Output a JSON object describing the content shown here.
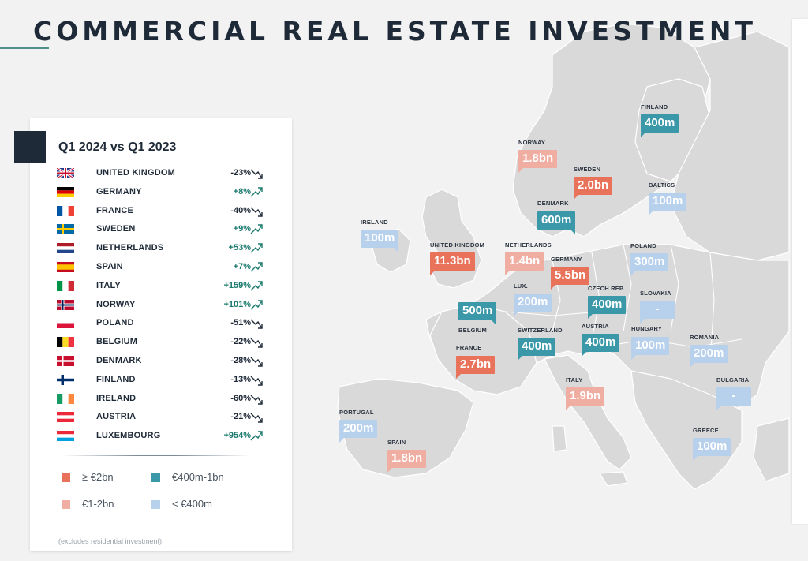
{
  "title": "COMMERCIAL REAL ESTATE INVESTMENT",
  "panel": {
    "heading": "Q1 2024 vs Q1 2023",
    "rows": [
      {
        "flag": "uk-flag-icon",
        "name": "UNITED KINGDOM",
        "change": "-23%",
        "trend": "down"
      },
      {
        "flag": "germany-flag-icon",
        "name": "GERMANY",
        "change": "+8%",
        "trend": "up"
      },
      {
        "flag": "france-flag-icon",
        "name": "FRANCE",
        "change": "-40%",
        "trend": "down"
      },
      {
        "flag": "sweden-flag-icon",
        "name": "SWEDEN",
        "change": "+9%",
        "trend": "up"
      },
      {
        "flag": "netherlands-flag-icon",
        "name": "NETHERLANDS",
        "change": "+53%",
        "trend": "up"
      },
      {
        "flag": "spain-flag-icon",
        "name": "SPAIN",
        "change": "+7%",
        "trend": "up"
      },
      {
        "flag": "italy-flag-icon",
        "name": "ITALY",
        "change": "+159%",
        "trend": "up"
      },
      {
        "flag": "norway-flag-icon",
        "name": "NORWAY",
        "change": "+101%",
        "trend": "up"
      },
      {
        "flag": "poland-flag-icon",
        "name": "POLAND",
        "change": "-51%",
        "trend": "down"
      },
      {
        "flag": "belgium-flag-icon",
        "name": "BELGIUM",
        "change": "-22%",
        "trend": "down"
      },
      {
        "flag": "denmark-flag-icon",
        "name": "DENMARK",
        "change": "-28%",
        "trend": "down"
      },
      {
        "flag": "finland-flag-icon",
        "name": "FINLAND",
        "change": "-13%",
        "trend": "down"
      },
      {
        "flag": "ireland-flag-icon",
        "name": "IRELAND",
        "change": "-60%",
        "trend": "down"
      },
      {
        "flag": "austria-flag-icon",
        "name": "AUSTRIA",
        "change": "-21%",
        "trend": "down"
      },
      {
        "flag": "luxembourg-flag-icon",
        "name": "LUXEMBOURG",
        "change": "+954%",
        "trend": "up"
      }
    ],
    "legend": [
      {
        "label": "≥ €2bn",
        "color": "#e8735a"
      },
      {
        "label": "€400m-1bn",
        "color": "#3a98a8"
      },
      {
        "label": "€1-2bn",
        "color": "#f0ada2"
      },
      {
        "label": "< €400m",
        "color": "#b7d0ec"
      }
    ],
    "note": "(excludes residential investment)"
  },
  "colors": {
    "dark_salmon": "#e8735a",
    "light_salmon": "#f0ada2",
    "teal": "#3a98a8",
    "pale_blue": "#b7d0ec",
    "navy": "#1f2a38",
    "positive_green": "#1b7a6e"
  },
  "map": {
    "countries": [
      {
        "name": "FINLAND",
        "value": "400m",
        "band": "teal"
      },
      {
        "name": "NORWAY",
        "value": "1.8bn",
        "band": "light"
      },
      {
        "name": "SWEDEN",
        "value": "2.0bn",
        "band": "dark"
      },
      {
        "name": "BALTICS",
        "value": "100m",
        "band": "pale"
      },
      {
        "name": "DENMARK",
        "value": "600m",
        "band": "teal"
      },
      {
        "name": "IRELAND",
        "value": "100m",
        "band": "pale"
      },
      {
        "name": "UNITED KINGDOM",
        "value": "11.3bn",
        "band": "dark"
      },
      {
        "name": "NETHERLANDS",
        "value": "1.4bn",
        "band": "light"
      },
      {
        "name": "POLAND",
        "value": "300m",
        "band": "pale"
      },
      {
        "name": "GERMANY",
        "value": "5.5bn",
        "band": "dark"
      },
      {
        "name": "LUX.",
        "value": "200m",
        "band": "pale"
      },
      {
        "name": "CZECH REP.",
        "value": "400m",
        "band": "teal"
      },
      {
        "name": "SLOVAKIA",
        "value": "-",
        "band": "pale"
      },
      {
        "name": "BELGIUM",
        "value": "500m",
        "band": "teal"
      },
      {
        "name": "SWITZERLAND",
        "value": "400m",
        "band": "teal"
      },
      {
        "name": "AUSTRIA",
        "value": "400m",
        "band": "teal"
      },
      {
        "name": "HUNGARY",
        "value": "100m",
        "band": "pale"
      },
      {
        "name": "ROMANIA",
        "value": "200m",
        "band": "pale"
      },
      {
        "name": "FRANCE",
        "value": "2.7bn",
        "band": "dark"
      },
      {
        "name": "ITALY",
        "value": "1.9bn",
        "band": "light"
      },
      {
        "name": "BULGARIA",
        "value": "-",
        "band": "pale"
      },
      {
        "name": "PORTUGAL",
        "value": "200m",
        "band": "pale"
      },
      {
        "name": "SPAIN",
        "value": "1.8bn",
        "band": "light"
      },
      {
        "name": "GREECE",
        "value": "100m",
        "band": "pale"
      }
    ]
  }
}
